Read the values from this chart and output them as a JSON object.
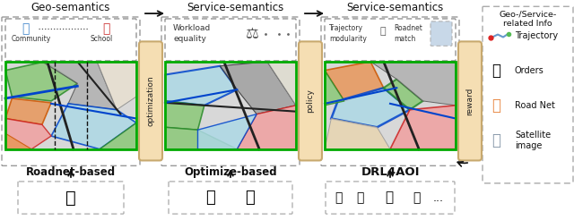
{
  "fig_width": 6.4,
  "fig_height": 2.46,
  "bg_color": "#ffffff",
  "panel_titles": [
    "Geo-semantics",
    "Service-semantics",
    "Service-semantics"
  ],
  "panel_labels": [
    "Roadnet-based",
    "Optimize-based",
    "DRL4AOI"
  ],
  "vertical_labels": [
    "optimization",
    "policy",
    "reward"
  ],
  "legend_title": "Geo-/Service-\nrelated Info",
  "legend_items": [
    "Trajectory",
    "Orders",
    "Road Net",
    "Satellite\nimage"
  ],
  "optimize_box_lines": [
    "Workload",
    "equality"
  ],
  "drl_box_line1": "Trajectory    Roadnet",
  "drl_box_line2": "modularity     match",
  "geo_label1": "Community",
  "geo_label2": "School",
  "arrow_color": "#222222",
  "box_fill": "#f5deb3",
  "box_edge": "#c8a96e",
  "dashed_box_edge": "#999999",
  "map_region_colors": [
    "#f4a460",
    "#90ee90",
    "#add8e6",
    "#ffb6c1",
    "#c8c8c8",
    "#e8d5b0"
  ],
  "road_color": "#333333",
  "green_border": "#00aa00",
  "blue_border": "#0044cc",
  "orange_border": "#dd6600",
  "red_border": "#cc2222"
}
